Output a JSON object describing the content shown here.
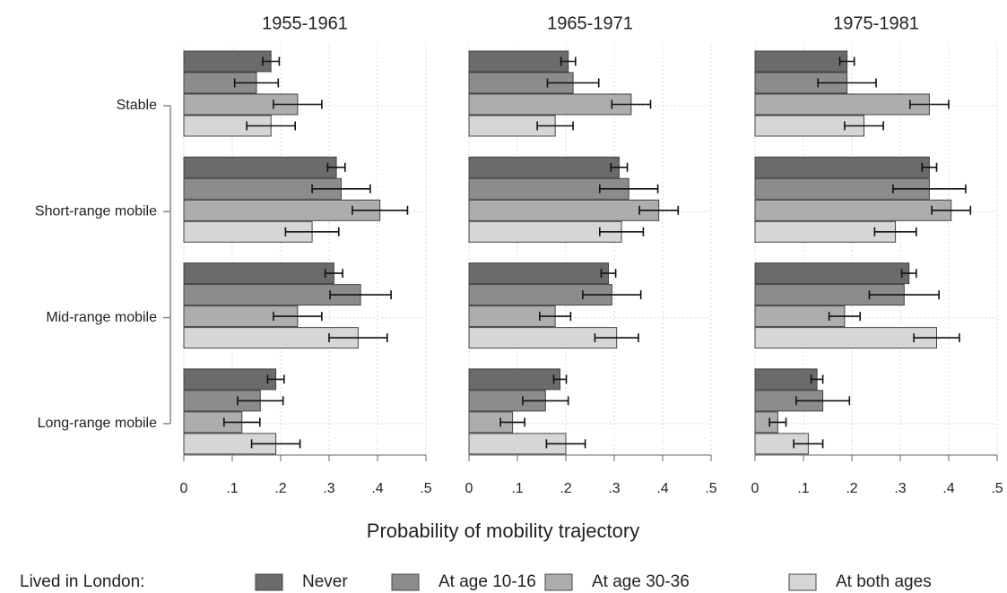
{
  "chart_data": {
    "type": "bar",
    "orientation": "horizontal",
    "panels": [
      "1955-1961",
      "1965-1971",
      "1975-1981"
    ],
    "categories": [
      "Stable",
      "Short-range mobile",
      "Mid-range mobile",
      "Long-range mobile"
    ],
    "x_label": "Probability of mobility trajectory",
    "legend_title": "Lived in London:",
    "xlim": [
      0,
      0.5
    ],
    "xticks": [
      0,
      {
        "value": 0.1,
        "label": ".1"
      },
      {
        "value": 0.2,
        "label": ".2"
      },
      {
        "value": 0.3,
        "label": ".3"
      },
      {
        "value": 0.4,
        "label": ".4"
      },
      {
        "value": 0.5,
        "label": ".5"
      }
    ],
    "grid": true,
    "series": [
      {
        "name": "Never",
        "color": "#6b6b6b",
        "values": [
          [
            0.18,
            0.315,
            0.31,
            0.19
          ],
          [
            0.205,
            0.31,
            0.288,
            0.188
          ],
          [
            0.19,
            0.36,
            0.318,
            0.128
          ]
        ],
        "errors": [
          [
            0.017,
            0.018,
            0.018,
            0.017
          ],
          [
            0.015,
            0.017,
            0.015,
            0.013
          ],
          [
            0.015,
            0.015,
            0.015,
            0.012
          ]
        ]
      },
      {
        "name": "At age 10-16",
        "color": "#8c8c8c",
        "values": [
          [
            0.15,
            0.325,
            0.365,
            0.158
          ],
          [
            0.215,
            0.33,
            0.295,
            0.158
          ],
          [
            0.19,
            0.36,
            0.308,
            0.14
          ]
        ],
        "errors": [
          [
            0.045,
            0.06,
            0.063,
            0.047
          ],
          [
            0.053,
            0.06,
            0.06,
            0.047
          ],
          [
            0.06,
            0.075,
            0.072,
            0.055
          ]
        ]
      },
      {
        "name": "At age 30-36",
        "color": "#adadad",
        "values": [
          [
            0.235,
            0.405,
            0.235,
            0.12
          ],
          [
            0.335,
            0.392,
            0.178,
            0.09
          ],
          [
            0.36,
            0.405,
            0.185,
            0.047
          ]
        ],
        "errors": [
          [
            0.05,
            0.057,
            0.05,
            0.037
          ],
          [
            0.04,
            0.04,
            0.032,
            0.025
          ],
          [
            0.04,
            0.04,
            0.032,
            0.017
          ]
        ]
      },
      {
        "name": "At both ages",
        "color": "#d6d6d6",
        "values": [
          [
            0.18,
            0.265,
            0.36,
            0.19
          ],
          [
            0.178,
            0.315,
            0.305,
            0.2
          ],
          [
            0.225,
            0.29,
            0.375,
            0.11
          ]
        ],
        "errors": [
          [
            0.05,
            0.055,
            0.06,
            0.05
          ],
          [
            0.037,
            0.045,
            0.045,
            0.04
          ],
          [
            0.04,
            0.043,
            0.047,
            0.03
          ]
        ]
      }
    ]
  }
}
